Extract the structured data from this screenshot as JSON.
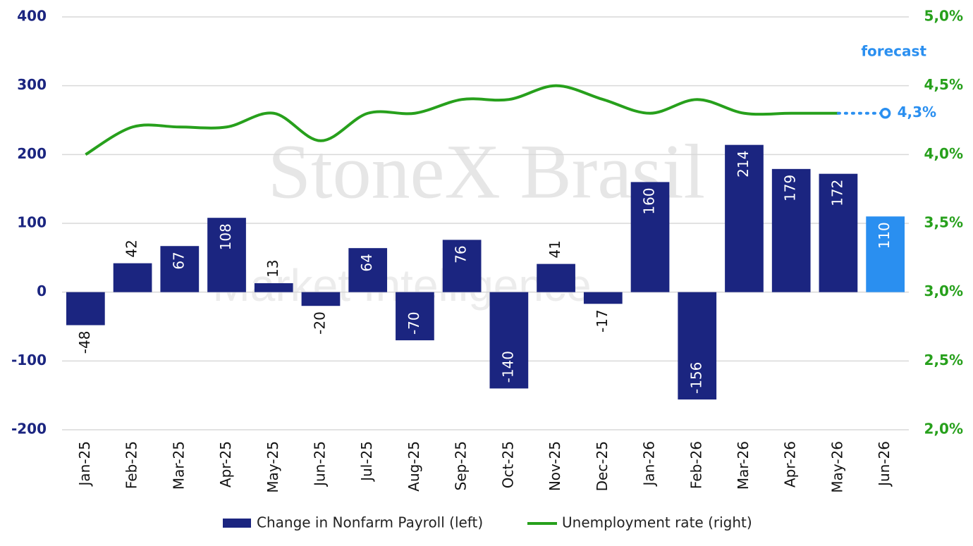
{
  "chart_data": {
    "type": "bar_line",
    "watermark": "StoneX Brasil",
    "watermark_subtitle": "Market Intelligence",
    "categories": [
      "Jan-25",
      "Feb-25",
      "Mar-25",
      "Apr-25",
      "May-25",
      "Jun-25",
      "Jul-25",
      "Aug-25",
      "Sep-25",
      "Oct-25",
      "Nov-25",
      "Dec-25",
      "Jan-26",
      "Feb-26",
      "Mar-26",
      "Apr-26",
      "May-26",
      "Jun-26"
    ],
    "series": [
      {
        "name": "Change in Nonfarm Payroll (left)",
        "color": "#1b2580",
        "point_colors": [
          "#1b2580",
          "#1b2580",
          "#1b2580",
          "#1b2580",
          "#1b2580",
          "#1b2580",
          "#1b2580",
          "#1b2580",
          "#1b2580",
          "#1b2580",
          "#1b2580",
          "#1b2580",
          "#1b2580",
          "#1b2580",
          "#1b2580",
          "#1b2580",
          "#1b2580",
          "#2a8ff0"
        ],
        "values": [
          -48,
          42,
          67,
          108,
          13,
          -20,
          64,
          -70,
          76,
          -140,
          41,
          -17,
          160,
          -156,
          214,
          179,
          172,
          110
        ]
      },
      {
        "name": "Unemployment rate (right)",
        "color": "#27a01c",
        "axis": "y2",
        "values": [
          4.0,
          4.2,
          4.2,
          4.2,
          4.3,
          4.1,
          4.3,
          4.3,
          4.4,
          4.4,
          4.5,
          4.4,
          4.3,
          4.4,
          4.3,
          4.3,
          4.3,
          null
        ]
      }
    ],
    "forecast": {
      "label": "forecast",
      "color": "#2a8ff0",
      "value": 4.3,
      "value_label": "4,3%"
    },
    "ylim": [
      -200,
      400
    ],
    "yticks": [
      -200,
      -100,
      0,
      100,
      200,
      300,
      400
    ],
    "y2lim": [
      2.0,
      5.0
    ],
    "y2ticks": [
      {
        "value": 2.0,
        "label": "2,0%"
      },
      {
        "value": 2.5,
        "label": "2,5%"
      },
      {
        "value": 3.0,
        "label": "3,0%"
      },
      {
        "value": 3.5,
        "label": "3,5%"
      },
      {
        "value": 4.0,
        "label": "4,0%"
      },
      {
        "value": 4.5,
        "label": "4,5%"
      },
      {
        "value": 5.0,
        "label": "5,0%"
      }
    ],
    "grid": true
  }
}
